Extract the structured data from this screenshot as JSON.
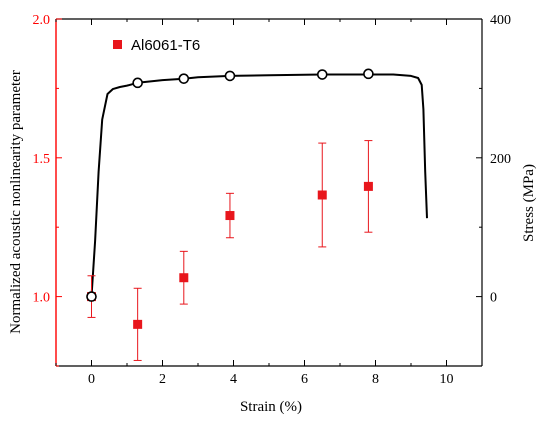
{
  "chart_data": {
    "type": "scatter",
    "xlabel": "Strain (%)",
    "ylabel": "Normalized acoustic nonlinearity parameter",
    "y2label": "Stress (MPa)",
    "xlim": [
      -1,
      11
    ],
    "ylim": [
      0.75,
      2.0
    ],
    "y2lim": [
      -100,
      400
    ],
    "x_ticks": [
      0,
      2,
      4,
      6,
      8,
      10
    ],
    "x_tick_labels": [
      "0",
      "2",
      "4",
      "6",
      "8",
      "10"
    ],
    "y_ticks": [
      1.0,
      1.5,
      2.0
    ],
    "y_tick_labels": [
      "1.0",
      "1.5",
      "2.0"
    ],
    "y2_ticks": [
      0,
      200,
      400
    ],
    "y2_tick_labels": [
      "0",
      "200",
      "400"
    ],
    "grid": false,
    "legend_position": "top-left",
    "colors": {
      "primary_axis": "#ff0000",
      "nonlinearity": "#e8161c",
      "stress": "#000000"
    },
    "series": [
      {
        "name": "Al6061-T6",
        "axis": "left",
        "marker": "square",
        "x": [
          0,
          1.3,
          2.6,
          3.9,
          6.5,
          7.8
        ],
        "y": [
          1.0,
          0.9,
          1.068,
          1.292,
          1.366,
          1.397
        ],
        "yerr": [
          0.075,
          0.13,
          0.095,
          0.08,
          0.187,
          0.165
        ]
      },
      {
        "axis": "right",
        "style": "line",
        "x": [
          0,
          0.1,
          0.2,
          0.3,
          0.45,
          0.6,
          0.8,
          1.0,
          1.3,
          2.0,
          2.6,
          3.0,
          3.9,
          5.0,
          6.5,
          7.0,
          7.8,
          8.5,
          9.0,
          9.2,
          9.3,
          9.35,
          9.4,
          9.45
        ],
        "y": [
          0,
          80,
          180,
          255,
          292,
          299,
          302,
          304,
          308,
          312,
          314,
          316,
          318,
          319,
          320,
          320,
          320,
          320,
          318,
          315,
          305,
          270,
          180,
          113
        ]
      },
      {
        "axis": "right",
        "marker": "open-circle",
        "x": [
          0,
          1.3,
          2.6,
          3.9,
          6.5,
          7.8
        ],
        "y": [
          0,
          308,
          314,
          318,
          320,
          321
        ]
      }
    ]
  }
}
